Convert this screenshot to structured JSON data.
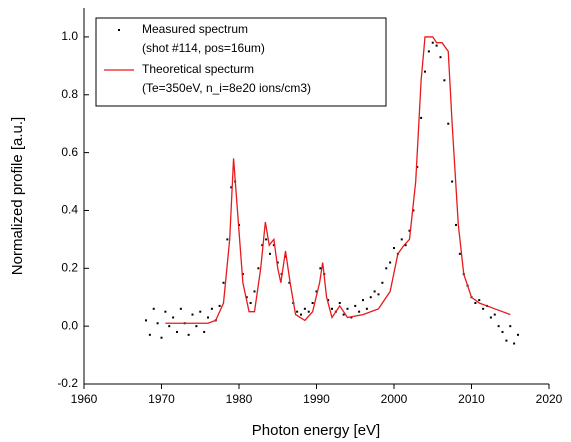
{
  "chart_data": {
    "type": "line",
    "x_label": "Photon energy [eV]",
    "y_label": "Normalized profile [a.u.]",
    "xlim": [
      1960,
      2020
    ],
    "xticks": [
      1960,
      1970,
      1980,
      1990,
      2000,
      2010,
      2020
    ],
    "ylim": [
      -0.2,
      1.1
    ],
    "yticks": [
      -0.2,
      {
        "value": 0,
        "label": "0.0"
      },
      0.2,
      0.4,
      0.6,
      0.8,
      {
        "value": 1,
        "label": "1.0"
      }
    ],
    "legend": "upper left",
    "series": [
      {
        "name": "Measured spectrum",
        "subtitle": "(shot #114, pos=16um)",
        "style": "markers",
        "color": "#000000",
        "x": [
          1968,
          1968.5,
          1969,
          1969.5,
          1970,
          1970.5,
          1971,
          1971.5,
          1972,
          1972.5,
          1973,
          1973.5,
          1974,
          1974.5,
          1975,
          1975.5,
          1976,
          1976.5,
          1977,
          1977.5,
          1978,
          1978.5,
          1979,
          1979.5,
          1980,
          1980.5,
          1981,
          1981.5,
          1982,
          1982.5,
          1983,
          1983.5,
          1984,
          1984.5,
          1985,
          1985.5,
          1986,
          1986.5,
          1987,
          1987.5,
          1988,
          1988.5,
          1989,
          1989.5,
          1990,
          1990.5,
          1991,
          1991.5,
          1992,
          1992.5,
          1993,
          1993.5,
          1994,
          1994.5,
          1995,
          1995.5,
          1996,
          1996.5,
          1997,
          1997.5,
          1998,
          1998.5,
          1999,
          1999.5,
          2000,
          2000.5,
          2001,
          2001.5,
          2002,
          2002.5,
          2003,
          2003.5,
          2004,
          2004.5,
          2005,
          2005.5,
          2006,
          2006.5,
          2007,
          2007.5,
          2008,
          2008.5,
          2009,
          2009.5,
          2010,
          2010.5,
          2011,
          2011.5,
          2012,
          2012.5,
          2013,
          2013.5,
          2014,
          2014.5,
          2015,
          2015.5,
          2016
        ],
        "values": [
          0.02,
          -0.03,
          0.06,
          0.01,
          -0.04,
          0.05,
          0.0,
          0.03,
          -0.02,
          0.06,
          0.01,
          -0.03,
          0.04,
          0.0,
          0.05,
          -0.02,
          0.03,
          0.06,
          0.02,
          0.07,
          0.15,
          0.3,
          0.48,
          0.5,
          0.35,
          0.18,
          0.1,
          0.08,
          0.12,
          0.2,
          0.28,
          0.3,
          0.25,
          0.28,
          0.22,
          0.18,
          0.24,
          0.15,
          0.08,
          0.05,
          0.04,
          0.06,
          0.05,
          0.08,
          0.12,
          0.2,
          0.18,
          0.09,
          0.06,
          0.05,
          0.08,
          0.04,
          0.06,
          0.03,
          0.07,
          0.05,
          0.09,
          0.06,
          0.1,
          0.12,
          0.11,
          0.15,
          0.2,
          0.22,
          0.27,
          0.25,
          0.3,
          0.28,
          0.33,
          0.4,
          0.55,
          0.72,
          0.88,
          0.95,
          0.98,
          0.97,
          0.93,
          0.85,
          0.7,
          0.5,
          0.35,
          0.25,
          0.18,
          0.14,
          0.1,
          0.08,
          0.09,
          0.06,
          0.07,
          0.03,
          0.04,
          0.0,
          -0.02,
          -0.05,
          0.0,
          -0.06,
          -0.03
        ]
      },
      {
        "name": "Theoretical specturm",
        "subtitle": "(Te=350eV, n_i=8e20 ions/cm3)",
        "style": "line",
        "color": "#e8191c",
        "x": [
          1970.5,
          1972,
          1974,
          1976,
          1977,
          1978,
          1978.8,
          1979.3,
          1979.8,
          1980.5,
          1981.3,
          1982,
          1982.8,
          1983.4,
          1983.9,
          1984.5,
          1985,
          1985.4,
          1986,
          1986.6,
          1987.3,
          1988.5,
          1989.5,
          1990.4,
          1990.8,
          1991.3,
          1992,
          1993,
          1994,
          1996,
          1998,
          1999.5,
          2000.5,
          2001.3,
          2002,
          2002.8,
          2003.5,
          2004,
          2005,
          2005.5,
          2006.2,
          2007,
          2007.5,
          2008.3,
          2009,
          2010,
          2011,
          2013,
          2015
        ],
        "values": [
          0.01,
          0.01,
          0.01,
          0.01,
          0.02,
          0.08,
          0.3,
          0.58,
          0.4,
          0.15,
          0.05,
          0.05,
          0.2,
          0.36,
          0.28,
          0.3,
          0.2,
          0.15,
          0.26,
          0.15,
          0.04,
          0.02,
          0.05,
          0.15,
          0.22,
          0.1,
          0.03,
          0.07,
          0.03,
          0.04,
          0.06,
          0.12,
          0.25,
          0.28,
          0.3,
          0.5,
          0.85,
          1.0,
          1.0,
          0.98,
          0.98,
          0.95,
          0.7,
          0.35,
          0.18,
          0.1,
          0.08,
          0.06,
          0.04
        ]
      }
    ]
  }
}
